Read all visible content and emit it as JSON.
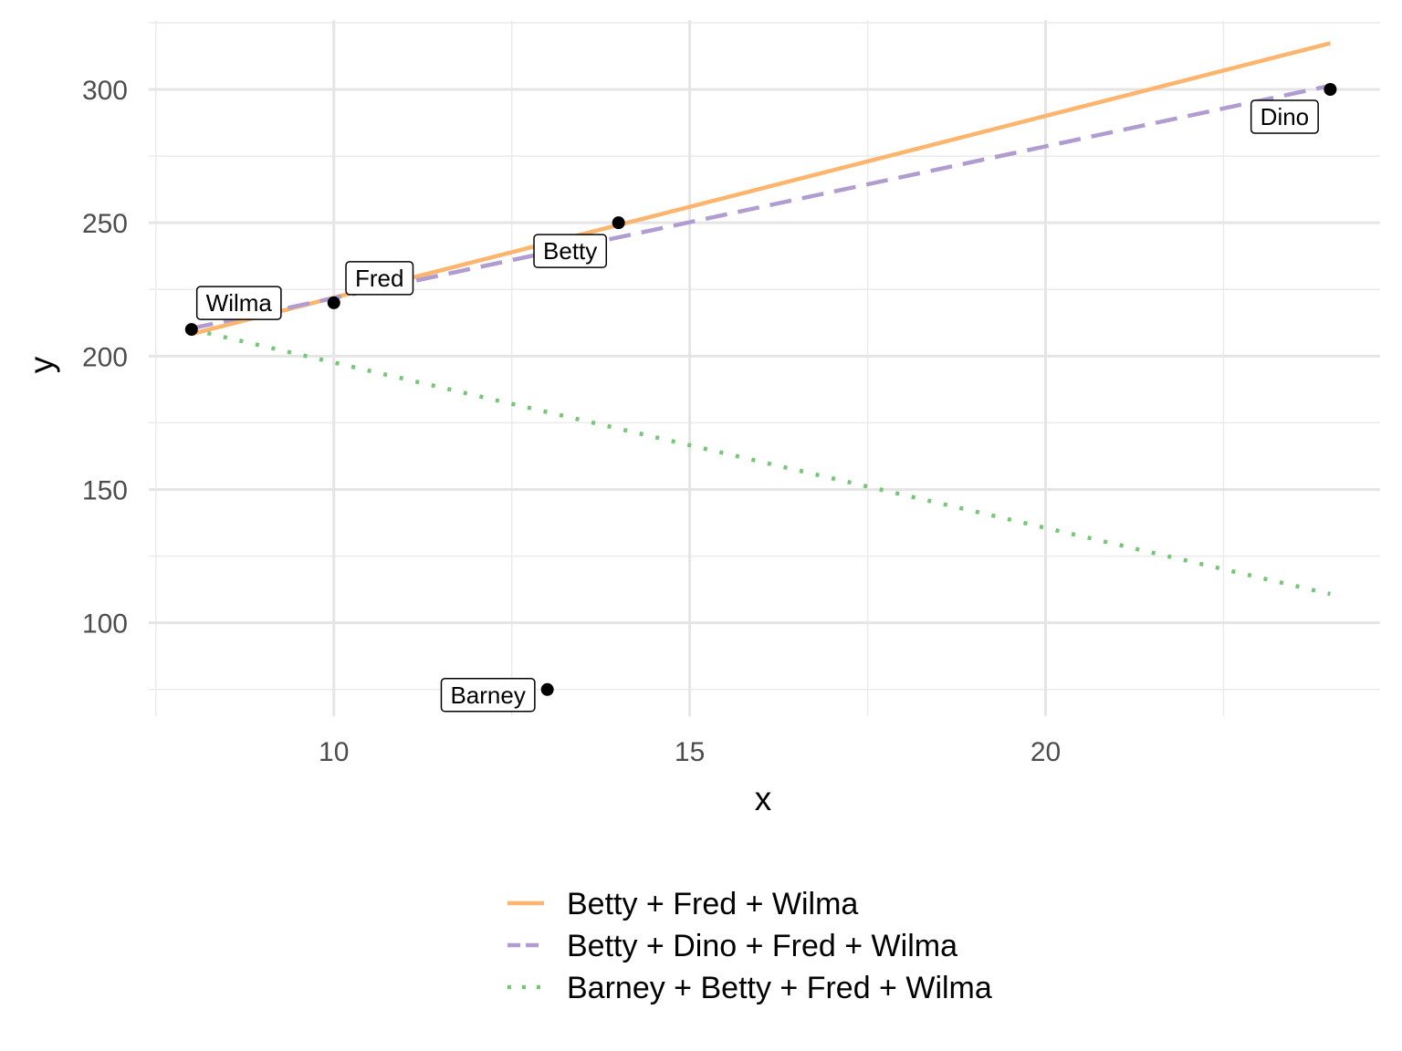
{
  "chart_data": {
    "type": "scatter",
    "xlabel": "x",
    "ylabel": "y",
    "xlim": [
      7.4,
      24.7
    ],
    "ylim": [
      65,
      326
    ],
    "x_ticks": [
      10,
      15,
      20
    ],
    "y_ticks": [
      100,
      150,
      200,
      250,
      300
    ],
    "grid": true,
    "legend_position": "bottom",
    "points": [
      {
        "name": "Wilma",
        "x": 8,
        "y": 210
      },
      {
        "name": "Fred",
        "x": 10,
        "y": 220
      },
      {
        "name": "Barney",
        "x": 13,
        "y": 75
      },
      {
        "name": "Betty",
        "x": 14,
        "y": 250
      },
      {
        "name": "Dino",
        "x": 24,
        "y": 300
      }
    ],
    "series": [
      {
        "name": "Betty + Fred + Wilma",
        "color": "#fdb46c",
        "dash": "solid",
        "x": [
          8,
          24
        ],
        "y": [
          208.3,
          317.3
        ]
      },
      {
        "name": "Betty + Dino + Fred + Wilma",
        "color": "#b19cd1",
        "dash": "dashed",
        "x": [
          8,
          24
        ],
        "y": [
          210.4,
          301.4
        ]
      },
      {
        "name": "Barney + Betty + Fred + Wilma",
        "color": "#77c677",
        "dash": "dotted",
        "x": [
          8,
          24
        ],
        "y": [
          210.0,
          110.8
        ]
      }
    ]
  }
}
